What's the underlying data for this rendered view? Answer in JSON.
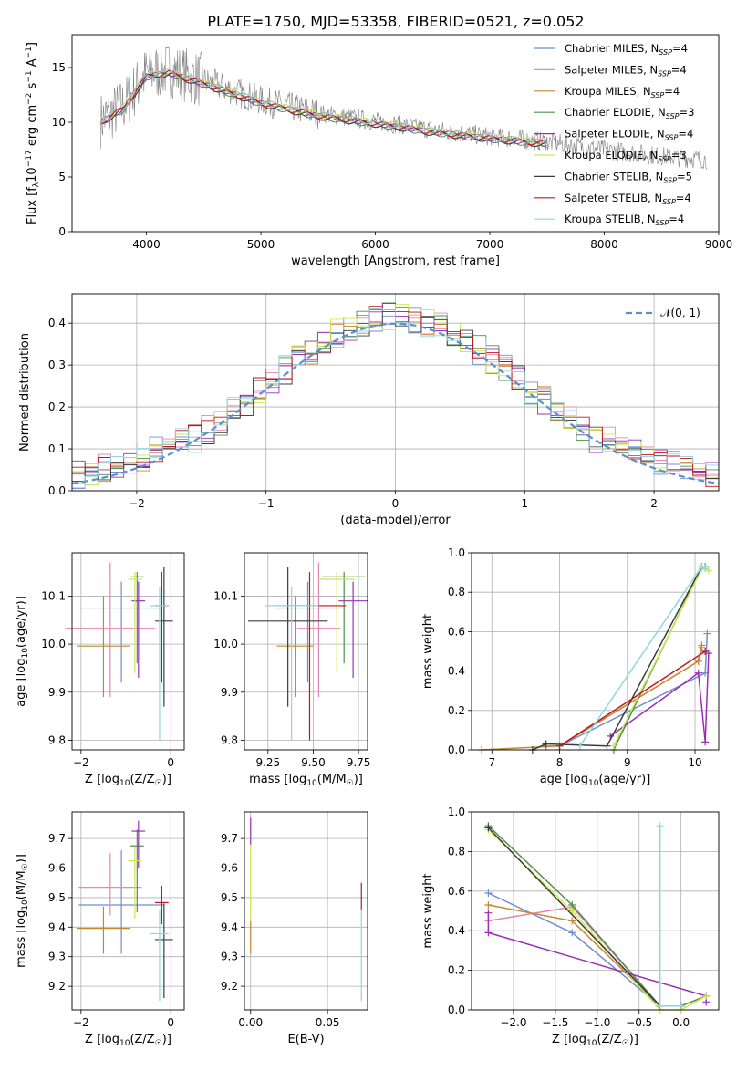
{
  "figure": {
    "title": "PLATE=1750, MJD=53358, FIBERID=0521, z=0.052"
  },
  "colors": {
    "grid": "#b0b0b0",
    "dashed": "#5b8fd6",
    "spectrum": "#808080"
  },
  "chart_data": [
    {
      "id": "spectrum",
      "type": "line",
      "xlabel": "wavelength [Angstrom, rest frame]",
      "ylabel": "Flux [f_λ10^−17 erg cm^−2 s^−1 A^−1]",
      "xlim": [
        3350,
        9000
      ],
      "ylim": [
        0,
        18
      ],
      "xticks": [
        4000,
        5000,
        6000,
        7000,
        8000,
        9000
      ],
      "yticks": [
        0,
        5,
        10,
        15
      ],
      "grid": false,
      "legend_position": "top-right",
      "legend": [
        {
          "name": "Chabrier MILES, N_SSP=4",
          "base": "Chabrier MILES, N",
          "sub": "SSP",
          "tail": "=4",
          "color": "#6e8fd0"
        },
        {
          "name": "Salpeter MILES, N_SSP=4",
          "base": "Salpeter MILES, N",
          "sub": "SSP",
          "tail": "=4",
          "color": "#e884b8"
        },
        {
          "name": "Kroupa MILES, N_SSP=4",
          "base": "Kroupa MILES, N",
          "sub": "SSP",
          "tail": "=4",
          "color": "#c18a2d"
        },
        {
          "name": "Chabrier ELODIE, N_SSP=3",
          "base": "Chabrier ELODIE, N",
          "sub": "SSP",
          "tail": "=3",
          "color": "#4f8f4f"
        },
        {
          "name": "Salpeter ELODIE, N_SSP=4",
          "base": "Salpeter ELODIE, N",
          "sub": "SSP",
          "tail": "=4",
          "color": "#9b30b8"
        },
        {
          "name": "Kroupa ELODIE, N_SSP=3",
          "base": "Kroupa ELODIE, N",
          "sub": "SSP",
          "tail": "=3",
          "color": "#cde84a"
        },
        {
          "name": "Chabrier STELIB, N_SSP=5",
          "base": "Chabrier STELIB, N",
          "sub": "SSP",
          "tail": "=5",
          "color": "#3c3c3c"
        },
        {
          "name": "Salpeter STELIB, N_SSP=4",
          "base": "Salpeter STELIB, N",
          "sub": "SSP",
          "tail": "=4",
          "color": "#c0161c"
        },
        {
          "name": "Kroupa STELIB, N_SSP=4",
          "base": "Kroupa STELIB, N",
          "sub": "SSP",
          "tail": "=4",
          "color": "#8fd6e0"
        }
      ],
      "data_envelope": {
        "x": [
          3600,
          3800,
          4000,
          4200,
          4500,
          5000,
          5500,
          6000,
          6500,
          7000,
          7500,
          8000,
          8500,
          8900
        ],
        "y": [
          10.2,
          11.5,
          14.5,
          14.8,
          13.8,
          12.0,
          10.8,
          10.1,
          9.3,
          8.7,
          8.2,
          7.5,
          6.9,
          6.6
        ]
      }
    },
    {
      "id": "residuals",
      "type": "line",
      "xlabel": "(data-model)/error",
      "ylabel": "Normed distribution",
      "xlim": [
        -2.5,
        2.5
      ],
      "ylim": [
        0,
        0.47
      ],
      "xticks": [
        -2,
        -1,
        0,
        1,
        2
      ],
      "xticklabels": [
        "−2",
        "−1",
        "0",
        "1",
        "2"
      ],
      "yticks": [
        0.0,
        0.1,
        0.2,
        0.3,
        0.4
      ],
      "yticklabels": [
        "0.0",
        "0.1",
        "0.2",
        "0.3",
        "0.4"
      ],
      "grid": true,
      "legend_position": "top-right",
      "legend": [
        {
          "name": "𝒩(0, 1)"
        }
      ],
      "series": [
        {
          "name": "𝒩(0, 1)",
          "function": "gaussian",
          "mu": 0,
          "sigma": 1
        }
      ]
    },
    {
      "id": "age-vs-Z",
      "type": "scatter",
      "xlabel": "Z [log10(Z/Z☉)]",
      "ylabel": "age  [log10(age/yr)]",
      "xlim": [
        -2.2,
        0.3
      ],
      "ylim": [
        9.78,
        10.19
      ],
      "xticks": [
        -2,
        0
      ],
      "xticklabels": [
        "−2",
        "0"
      ],
      "yticks": [
        9.8,
        9.9,
        10.0,
        10.1
      ],
      "yticklabels": [
        "9.8",
        "9.9",
        "10.0",
        "10.1"
      ],
      "grid": true,
      "errorbars": [
        {
          "color": "#6e8fd0",
          "x": -1.1,
          "xerr": 0.9,
          "y": 10.075,
          "ylo": 9.92,
          "yhi": 10.13
        },
        {
          "color": "#e884b8",
          "x": -1.35,
          "xerr": 1.0,
          "y": 10.033,
          "ylo": 9.89,
          "yhi": 10.17
        },
        {
          "color": "#c18a2d",
          "x": -1.5,
          "xerr": 0.6,
          "y": 9.996,
          "ylo": 9.89,
          "yhi": 10.1
        },
        {
          "color": "#4f8f4f",
          "x": -0.75,
          "xerr": 0.15,
          "y": 10.14,
          "ylo": 9.96,
          "yhi": 10.15
        },
        {
          "color": "#9b30b8",
          "x": -0.72,
          "xerr": 0.15,
          "y": 10.09,
          "ylo": 9.93,
          "yhi": 10.13
        },
        {
          "color": "#cde84a",
          "x": -0.8,
          "xerr": 0.15,
          "y": 10.135,
          "ylo": 9.94,
          "yhi": 10.15
        },
        {
          "color": "#3c3c3c",
          "x": -0.15,
          "xerr": 0.2,
          "y": 10.048,
          "ylo": 9.87,
          "yhi": 10.16
        },
        {
          "color": "#c0161c",
          "x": -0.2,
          "xerr": 0.15,
          "y": 10.08,
          "ylo": 9.92,
          "yhi": 10.15
        },
        {
          "color": "#8fd6e0",
          "x": -0.25,
          "xerr": 0.2,
          "y": 10.08,
          "ylo": 9.8,
          "yhi": 10.12
        }
      ]
    },
    {
      "id": "age-vs-mass",
      "type": "scatter",
      "xlabel": "mass [log10(M/M☉)]",
      "ylabel": "",
      "xlim": [
        9.12,
        9.8
      ],
      "ylim": [
        9.78,
        10.19
      ],
      "xticks": [
        9.25,
        9.5,
        9.75
      ],
      "xticklabels": [
        "9.25",
        "9.50",
        "9.75"
      ],
      "yticks": [
        9.8,
        9.9,
        10.0,
        10.1
      ],
      "yticklabels": [
        "9.8",
        "9.9",
        "10.0",
        "10.1"
      ],
      "grid": true,
      "errorbars": [
        {
          "color": "#6e8fd0",
          "x": 9.47,
          "xerr": 0.18,
          "y": 10.075,
          "ylo": 9.92,
          "yhi": 10.13
        },
        {
          "color": "#e884b8",
          "x": 9.53,
          "xerr": 0.12,
          "y": 10.033,
          "ylo": 9.89,
          "yhi": 10.17
        },
        {
          "color": "#c18a2d",
          "x": 9.4,
          "xerr": 0.1,
          "y": 9.996,
          "ylo": 9.89,
          "yhi": 10.1
        },
        {
          "color": "#4f8f4f",
          "x": 9.67,
          "xerr": 0.12,
          "y": 10.14,
          "ylo": 9.96,
          "yhi": 10.15
        },
        {
          "color": "#9b30b8",
          "x": 9.72,
          "xerr": 0.08,
          "y": 10.09,
          "ylo": 9.93,
          "yhi": 10.13
        },
        {
          "color": "#cde84a",
          "x": 9.63,
          "xerr": 0.1,
          "y": 10.135,
          "ylo": 9.94,
          "yhi": 10.15
        },
        {
          "color": "#3c3c3c",
          "x": 9.36,
          "xerr": 0.22,
          "y": 10.048,
          "ylo": 9.87,
          "yhi": 10.16
        },
        {
          "color": "#c0161c",
          "x": 9.48,
          "xerr": 0.2,
          "y": 10.08,
          "ylo": 9.8,
          "yhi": 10.15
        },
        {
          "color": "#8fd6e0",
          "x": 9.38,
          "xerr": 0.15,
          "y": 10.08,
          "ylo": 9.8,
          "yhi": 10.12
        }
      ]
    },
    {
      "id": "massweight-vs-age",
      "type": "line",
      "xlabel": "age  [log10(age/yr)]",
      "ylabel": "mass weight",
      "xlim": [
        6.7,
        10.35
      ],
      "ylim": [
        0,
        1.0
      ],
      "xticks": [
        7,
        8,
        9,
        10
      ],
      "xticklabels": [
        "7",
        "8",
        "9",
        "10"
      ],
      "yticks": [
        0.0,
        0.2,
        0.4,
        0.6,
        0.8,
        1.0
      ],
      "yticklabels": [
        "0.0",
        "0.2",
        "0.4",
        "0.6",
        "0.8",
        "1.0"
      ],
      "grid": true,
      "series": [
        {
          "color": "#6e8fd0",
          "x": [
            7.8,
            8.0,
            10.15,
            10.18
          ],
          "y": [
            0.02,
            0.02,
            0.39,
            0.59
          ]
        },
        {
          "color": "#e884b8",
          "x": [
            7.8,
            8.0,
            10.05,
            10.1
          ],
          "y": [
            0.02,
            0.02,
            0.45,
            0.52
          ]
        },
        {
          "color": "#c18a2d",
          "x": [
            6.85,
            8.0,
            10.05,
            10.1
          ],
          "y": [
            0.0,
            0.02,
            0.45,
            0.53
          ]
        },
        {
          "color": "#4f8f4f",
          "x": [
            8.8,
            10.1,
            10.15
          ],
          "y": [
            0.0,
            0.93,
            0.93
          ]
        },
        {
          "color": "#9b30b8",
          "x": [
            8.75,
            10.05,
            10.15,
            10.2
          ],
          "y": [
            0.07,
            0.39,
            0.04,
            0.49
          ]
        },
        {
          "color": "#cde84a",
          "x": [
            8.8,
            10.1,
            10.2
          ],
          "y": [
            0.02,
            0.92,
            0.91
          ]
        },
        {
          "color": "#3c3c3c",
          "x": [
            7.6,
            7.8,
            8.7,
            10.1
          ],
          "y": [
            0.0,
            0.03,
            0.02,
            0.93
          ]
        },
        {
          "color": "#c0161c",
          "x": [
            8.0,
            10.15
          ],
          "y": [
            0.02,
            0.5
          ]
        },
        {
          "color": "#8fd6e0",
          "x": [
            8.3,
            10.1,
            10.15
          ],
          "y": [
            0.02,
            0.93,
            0.92
          ]
        }
      ]
    },
    {
      "id": "mass-vs-Z",
      "type": "scatter",
      "xlabel": "Z [log10(Z/Z☉)]",
      "ylabel": "mass [log10(M/M☉)]",
      "xlim": [
        -2.2,
        0.3
      ],
      "ylim": [
        9.12,
        9.79
      ],
      "xticks": [
        -2,
        0
      ],
      "xticklabels": [
        "−2",
        "0"
      ],
      "yticks": [
        9.2,
        9.3,
        9.4,
        9.5,
        9.6,
        9.7
      ],
      "yticklabels": [
        "9.2",
        "9.3",
        "9.4",
        "9.5",
        "9.6",
        "9.7"
      ],
      "grid": true,
      "errorbars": [
        {
          "color": "#6e8fd0",
          "x": -1.1,
          "xerr": 0.95,
          "y": 9.475,
          "ylo": 9.31,
          "yhi": 9.66
        },
        {
          "color": "#e884b8",
          "x": -1.35,
          "xerr": 0.7,
          "y": 9.535,
          "ylo": 9.44,
          "yhi": 9.65
        },
        {
          "color": "#c18a2d",
          "x": -1.5,
          "xerr": 0.6,
          "y": 9.396,
          "ylo": 9.31,
          "yhi": 9.47
        },
        {
          "color": "#4f8f4f",
          "x": -0.75,
          "xerr": 0.15,
          "y": 9.675,
          "ylo": 9.45,
          "yhi": 9.73
        },
        {
          "color": "#9b30b8",
          "x": -0.72,
          "xerr": 0.15,
          "y": 9.725,
          "ylo": 9.6,
          "yhi": 9.76
        },
        {
          "color": "#cde84a",
          "x": -0.8,
          "xerr": 0.15,
          "y": 9.625,
          "ylo": 9.43,
          "yhi": 9.67
        },
        {
          "color": "#3c3c3c",
          "x": -0.15,
          "xerr": 0.2,
          "y": 9.358,
          "ylo": 9.16,
          "yhi": 9.48
        },
        {
          "color": "#c0161c",
          "x": -0.2,
          "xerr": 0.15,
          "y": 9.483,
          "ylo": 9.41,
          "yhi": 9.54
        },
        {
          "color": "#8fd6e0",
          "x": -0.25,
          "xerr": 0.2,
          "y": 9.378,
          "ylo": 9.15,
          "yhi": 9.46
        }
      ]
    },
    {
      "id": "mass-vs-EBV",
      "type": "scatter",
      "xlabel": "E(B-V)",
      "ylabel": "",
      "xlim": [
        -0.004,
        0.076
      ],
      "ylim": [
        9.12,
        9.79
      ],
      "xticks": [
        0.0,
        0.05
      ],
      "xticklabels": [
        "0.00",
        "0.05"
      ],
      "yticks": [
        9.2,
        9.3,
        9.4,
        9.5,
        9.6,
        9.7
      ],
      "yticklabels": [
        "9.2",
        "9.3",
        "9.4",
        "9.5",
        "9.6",
        "9.7"
      ],
      "grid": true,
      "errorbars": [
        {
          "color": "#c18a2d",
          "x": 0.0,
          "ylo": 9.31,
          "yhi": 9.42
        },
        {
          "color": "#9b30b8",
          "x": 0.0,
          "ylo": 9.68,
          "yhi": 9.77
        },
        {
          "color": "#cde84a",
          "x": 0.0,
          "ylo": 9.42,
          "yhi": 9.68
        },
        {
          "color": "#c0161c",
          "x": 0.072,
          "ylo": 9.46,
          "yhi": 9.55
        },
        {
          "color": "#8fd6e0",
          "x": 0.072,
          "ylo": 9.15,
          "yhi": 9.46
        }
      ]
    },
    {
      "id": "massweight-vs-Z",
      "type": "line",
      "xlabel": "Z [log10(Z/Z☉)]",
      "ylabel": "mass weight",
      "xlim": [
        -2.5,
        0.45
      ],
      "ylim": [
        0,
        1.0
      ],
      "xticks": [
        -2.0,
        -1.5,
        -1.0,
        -0.5,
        0.0
      ],
      "xticklabels": [
        "−2.0",
        "−1.5",
        "−1.0",
        "−0.5",
        "0.0"
      ],
      "yticks": [
        0.0,
        0.2,
        0.4,
        0.6,
        0.8,
        1.0
      ],
      "yticklabels": [
        "0.0",
        "0.2",
        "0.4",
        "0.6",
        "0.8",
        "1.0"
      ],
      "grid": true,
      "series": [
        {
          "color": "#6e8fd0",
          "x": [
            -2.3,
            -1.3,
            -0.25,
            0.0
          ],
          "y": [
            0.59,
            0.39,
            0.02,
            0.02
          ]
        },
        {
          "color": "#e884b8",
          "x": [
            -2.3,
            -1.3,
            -0.25,
            0.0
          ],
          "y": [
            0.45,
            0.52,
            0.02,
            0.02
          ]
        },
        {
          "color": "#c18a2d",
          "x": [
            -2.3,
            -1.3,
            -0.25,
            0.0
          ],
          "y": [
            0.53,
            0.45,
            0.02,
            0.02
          ]
        },
        {
          "color": "#4f8f4f",
          "x": [
            -2.3,
            -1.3,
            -0.25,
            0.0,
            0.3
          ],
          "y": [
            0.93,
            0.53,
            0.02,
            0.02,
            0.07
          ]
        },
        {
          "color": "#9b30b8",
          "x": [
            -2.3,
            -2.3,
            0.3,
            0.3
          ],
          "y": [
            0.49,
            0.39,
            0.07,
            0.04
          ]
        },
        {
          "color": "#cde84a",
          "x": [
            -2.3,
            -1.3,
            -0.25,
            0.0,
            0.3
          ],
          "y": [
            0.91,
            0.5,
            0.0,
            0.0,
            0.07
          ]
        },
        {
          "color": "#3c3c3c",
          "x": [
            -2.3,
            -0.25,
            0.0
          ],
          "y": [
            0.92,
            0.02,
            0.02
          ]
        },
        {
          "color": "#8fd6e0",
          "x": [
            -0.25,
            -0.25,
            0.0
          ],
          "y": [
            0.93,
            0.02,
            0.02
          ]
        }
      ]
    }
  ]
}
